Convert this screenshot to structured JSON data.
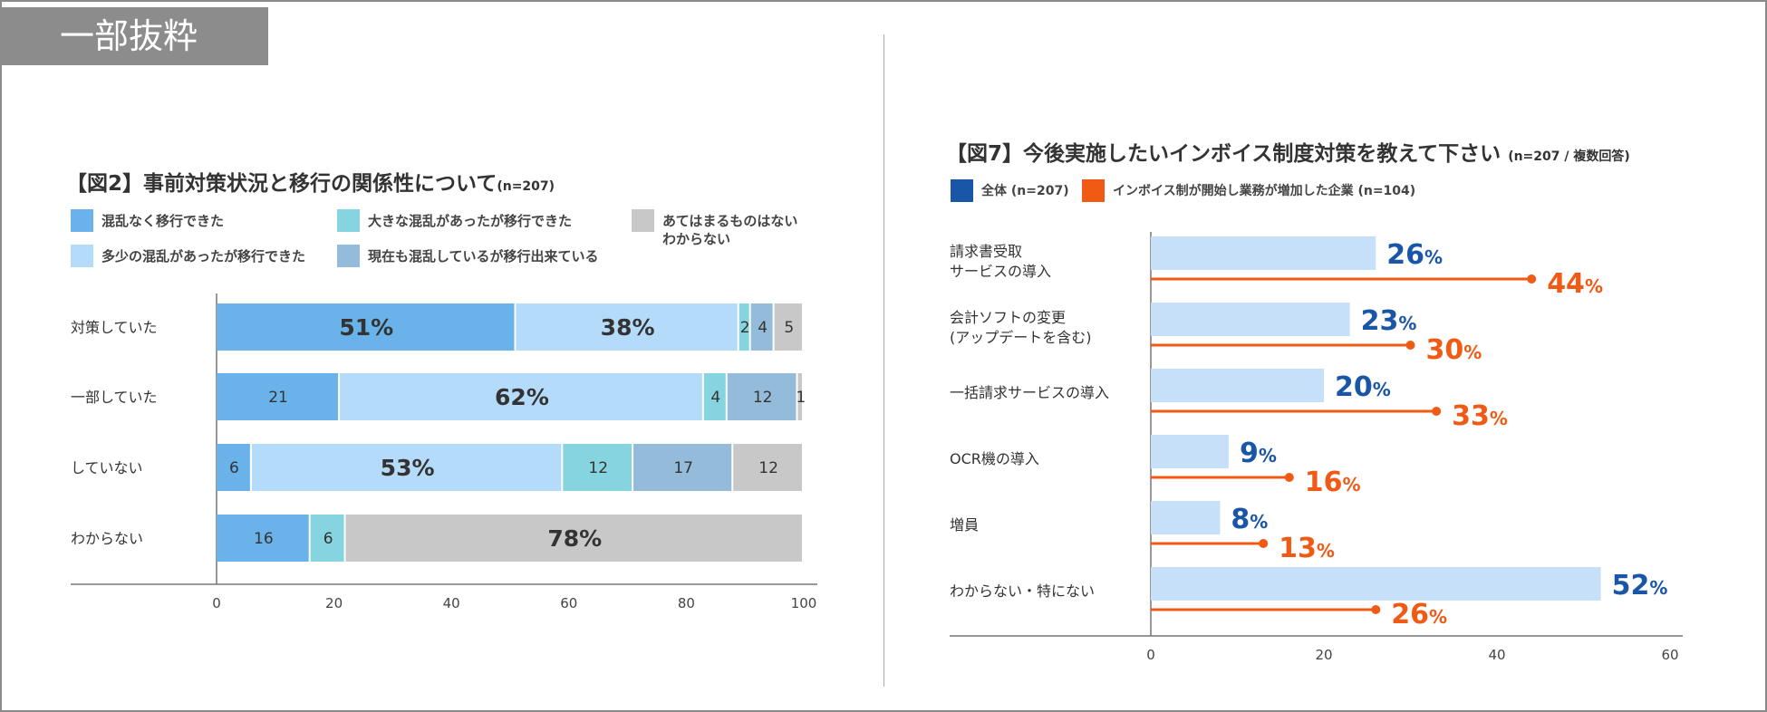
{
  "tag": "一部抜粋",
  "left": {
    "title": "【図2】事前対策状況と移行の関係性について",
    "subtitle": "(n=207)",
    "legend": [
      {
        "label": "混乱なく移行できた",
        "color": "#6ab3ea"
      },
      {
        "label": "大きな混乱があったが移行できた",
        "color": "#86d4df"
      },
      {
        "label": "あてはまるものはない",
        "label2": "わからない",
        "color": "#c8c8c8"
      },
      {
        "label": "多少の混乱があったが移行できた",
        "color": "#b5dbfa"
      },
      {
        "label": "現在も混乱しているが移行出来ている",
        "color": "#94bbd9"
      }
    ]
  },
  "right": {
    "title": "【図7】今後実施したいインボイス制度対策を教えて下さい",
    "subtitle": "(n=207 / 複数回答)",
    "legend": [
      {
        "label": "全体 (n=207)",
        "color": "#1a56a8"
      },
      {
        "label": "インボイス制が開始し業務が増加した企業 (n=104)",
        "color": "#f05a14"
      }
    ]
  },
  "chart_data": [
    {
      "type": "bar",
      "orientation": "horizontal",
      "stacked": true,
      "title": "【図2】事前対策状況と移行の関係性について (n=207)",
      "categories": [
        "対策していた",
        "一部していた",
        "していない",
        "わからない"
      ],
      "series": [
        {
          "name": "混乱なく移行できた",
          "color": "#6ab3ea",
          "values": [
            51,
            21,
            6,
            16
          ],
          "labels": [
            "51%",
            "21",
            "6",
            "16"
          ]
        },
        {
          "name": "多少の混乱があったが移行できた",
          "color": "#b5dbfa",
          "values": [
            38,
            62,
            53,
            0
          ],
          "labels": [
            "38%",
            "62%",
            "53%",
            ""
          ]
        },
        {
          "name": "大きな混乱があったが移行できた",
          "color": "#86d4df",
          "values": [
            2,
            4,
            12,
            6
          ],
          "labels": [
            "2",
            "4",
            "12",
            "6"
          ]
        },
        {
          "name": "現在も混乱しているが移行出来ている",
          "color": "#94bbd9",
          "values": [
            4,
            12,
            17,
            0
          ],
          "labels": [
            "4",
            "12",
            "17",
            ""
          ]
        },
        {
          "name": "あてはまるものはない わからない",
          "color": "#c8c8c8",
          "values": [
            5,
            1,
            12,
            78
          ],
          "labels": [
            "5",
            "1",
            "12",
            "78%"
          ]
        }
      ],
      "xlim": [
        0,
        100
      ],
      "xticks": [
        "0",
        "20",
        "40",
        "60",
        "80",
        "100"
      ]
    },
    {
      "type": "bar",
      "orientation": "horizontal",
      "title": "【図7】今後実施したいインボイス制度対策を教えて下さい (n=207 / 複数回答)",
      "categories": [
        {
          "line1": "請求書受取",
          "line2": "サービスの導入"
        },
        {
          "line1": "会計ソフトの変更",
          "line2": "(アップデートを含む)"
        },
        {
          "line1": "一括請求サービスの導入",
          "line2": ""
        },
        {
          "line1": "OCR機の導入",
          "line2": ""
        },
        {
          "line1": "増員",
          "line2": ""
        },
        {
          "line1": "わからない・特にない",
          "line2": ""
        }
      ],
      "series": [
        {
          "name": "全体 (n=207)",
          "color": "#1a56a8",
          "bar_color": "#c7e0fa",
          "values": [
            26,
            23,
            20,
            9,
            8,
            52
          ]
        },
        {
          "name": "インボイス制が開始し業務が増加した企業 (n=104)",
          "color": "#f05a14",
          "values": [
            44,
            30,
            33,
            16,
            13,
            26
          ]
        }
      ],
      "value_suffix": "%",
      "xlim": [
        0,
        60
      ],
      "xticks": [
        "0",
        "20",
        "40",
        "60"
      ]
    }
  ]
}
